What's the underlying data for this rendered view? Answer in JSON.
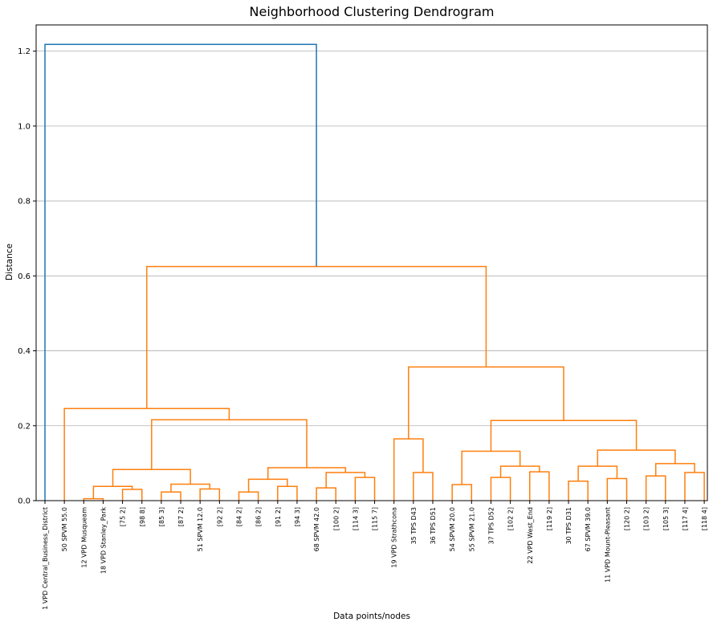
{
  "chart_data": {
    "type": "dendrogram",
    "title": "Neighborhood Clustering Dendrogram",
    "xlabel": "Data points/nodes",
    "ylabel": "Distance",
    "ylim": [
      0,
      1.27
    ],
    "yticks": [
      "0.0",
      "0.2",
      "0.4",
      "0.6",
      "0.8",
      "1.0",
      "1.2"
    ],
    "grid": "horizontal",
    "colors": {
      "root": "#1f77b4",
      "cluster": "#ff7f0e"
    },
    "leaves": [
      "1 VPD Central_Business_District",
      "50 SPVM 55.0",
      "12 VPD Musqueam",
      "18 VPD Stanley_Park",
      "[75 2]",
      "[98 8]",
      "[85 3]",
      "[87 2]",
      "51 SPVM 12.0",
      "[92 2]",
      "[84 2]",
      "[86 2]",
      "[91 2]",
      "[94 3]",
      "68 SPVM 42.0",
      "[100 2]",
      "[114 3]",
      "[115 7]",
      "19 VPD Strathcona",
      "35 TPS D43",
      "36 TPS D51",
      "54 SPVM 20.0",
      "55 SPVM 21.0",
      "37 TPS D52",
      "[102 2]",
      "22 VPD West_End",
      "[119 2]",
      "30 TPS D31",
      "67 SPVM 39.0",
      "11 VPD Mount-Pleasant",
      "[120 2]",
      "[103 2]",
      "[105 3]",
      "[117 4]",
      "[118 4]"
    ],
    "merges": [
      {
        "a": 2,
        "b": 3,
        "height": 0.005
      },
      {
        "a": 4,
        "b": 5,
        "height": 0.03
      },
      {
        "a": "m0",
        "b": "m1",
        "height": 0.038
      },
      {
        "a": 6,
        "b": 7,
        "height": 0.023
      },
      {
        "a": 8,
        "b": 9,
        "height": 0.031
      },
      {
        "a": "m3",
        "b": "m4",
        "height": 0.044
      },
      {
        "a": "m2",
        "b": "m5",
        "height": 0.083
      },
      {
        "a": 10,
        "b": 11,
        "height": 0.023
      },
      {
        "a": 12,
        "b": 13,
        "height": 0.038
      },
      {
        "a": "m7",
        "b": "m8",
        "height": 0.057
      },
      {
        "a": 14,
        "b": 15,
        "height": 0.034
      },
      {
        "a": 16,
        "b": 17,
        "height": 0.062
      },
      {
        "a": "m10",
        "b": "m11",
        "height": 0.075
      },
      {
        "a": "m9",
        "b": "m12",
        "height": 0.088
      },
      {
        "a": "m6",
        "b": "m13",
        "height": 0.216
      },
      {
        "a": 1,
        "b": "m14",
        "height": 0.246
      },
      {
        "a": 19,
        "b": 20,
        "height": 0.075
      },
      {
        "a": 18,
        "b": "m16",
        "height": 0.165
      },
      {
        "a": 21,
        "b": 22,
        "height": 0.043
      },
      {
        "a": 23,
        "b": 24,
        "height": 0.062
      },
      {
        "a": 25,
        "b": 26,
        "height": 0.077
      },
      {
        "a": "m19",
        "b": "m20",
        "height": 0.092
      },
      {
        "a": "m18",
        "b": "m21",
        "height": 0.132
      },
      {
        "a": 27,
        "b": 28,
        "height": 0.052
      },
      {
        "a": 29,
        "b": 30,
        "height": 0.059
      },
      {
        "a": "m23",
        "b": "m24",
        "height": 0.092
      },
      {
        "a": 31,
        "b": 32,
        "height": 0.066
      },
      {
        "a": 33,
        "b": 34,
        "height": 0.075
      },
      {
        "a": "m26",
        "b": "m27",
        "height": 0.099
      },
      {
        "a": "m25",
        "b": "m28",
        "height": 0.135
      },
      {
        "a": "m22",
        "b": "m29",
        "height": 0.214
      },
      {
        "a": "m17",
        "b": "m30",
        "height": 0.357
      },
      {
        "a": "m15",
        "b": "m31",
        "height": 0.625
      },
      {
        "a": 0,
        "b": "m32",
        "height": 1.218
      }
    ]
  }
}
